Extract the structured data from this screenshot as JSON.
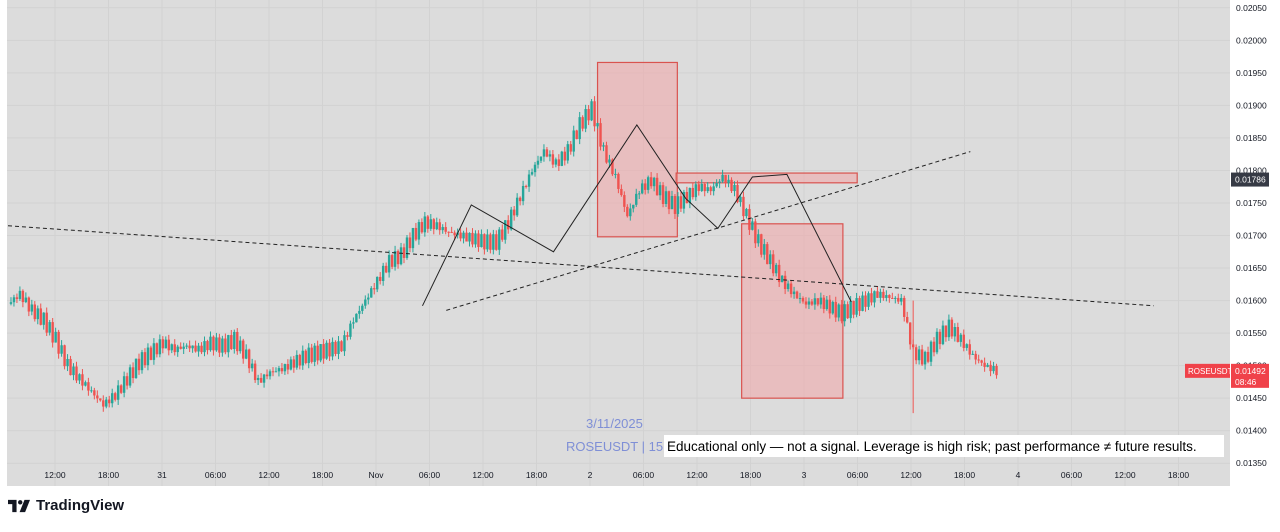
{
  "brand": {
    "name": "TradingView",
    "icon": "tradingview-logo-icon"
  },
  "watermark": {
    "date": "3/11/2025",
    "symbol_prefix": "ROSEUSDT | 15M"
  },
  "disclaimer": "Educational only — not a signal. Leverage is high risk; past performance ≠ future results.",
  "price_tags": {
    "marker": "0.01786",
    "symbol": "ROSEUSDT",
    "last": "0.01492",
    "countdown": "08:46"
  },
  "colors": {
    "up": "#26a69a",
    "down": "#ef5350",
    "zone_fill": "#f3a5a8",
    "zone_stroke": "#d9534f",
    "background": "#dcdcdc",
    "axis_bg": "#ffffff",
    "price_tag": "#f0424a",
    "marker_tag": "#363a45"
  },
  "chart_data": {
    "type": "candlestick",
    "y_ticks": [
      "0.02050",
      "0.02000",
      "0.01950",
      "0.01900",
      "0.01850",
      "0.01800",
      "0.01750",
      "0.01700",
      "0.01650",
      "0.01600",
      "0.01550",
      "0.01500",
      "0.01450",
      "0.01400",
      "0.01350"
    ],
    "x_ticks": [
      "12:00",
      "18:00",
      "31",
      "06:00",
      "12:00",
      "18:00",
      "Nov",
      "06:00",
      "12:00",
      "18:00",
      "2",
      "06:00",
      "12:00",
      "18:00",
      "3",
      "06:00",
      "12:00",
      "18:00",
      "4",
      "06:00",
      "12:00",
      "18:00"
    ],
    "ylim": [
      0.01315,
      0.02062
    ],
    "grid": true,
    "close_path": [
      [
        0,
        0.01595
      ],
      [
        1,
        0.0161
      ],
      [
        2,
        0.01585
      ],
      [
        3,
        0.0157
      ],
      [
        4,
        0.0154
      ],
      [
        5,
        0.015
      ],
      [
        6,
        0.0148
      ],
      [
        7,
        0.0146
      ],
      [
        8,
        0.0144
      ],
      [
        9,
        0.01455
      ],
      [
        10,
        0.0148
      ],
      [
        11,
        0.01505
      ],
      [
        12,
        0.0152
      ],
      [
        13,
        0.01535
      ],
      [
        14,
        0.01525
      ],
      [
        15,
        0.0153
      ],
      [
        16,
        0.01525
      ],
      [
        17,
        0.01535
      ],
      [
        18,
        0.0153
      ],
      [
        19,
        0.0154
      ],
      [
        20,
        0.01515
      ],
      [
        21,
        0.01475
      ],
      [
        22,
        0.0149
      ],
      [
        23,
        0.01495
      ],
      [
        24,
        0.01505
      ],
      [
        25,
        0.01515
      ],
      [
        26,
        0.0152
      ],
      [
        27,
        0.01525
      ],
      [
        28,
        0.0153
      ],
      [
        29,
        0.0157
      ],
      [
        30,
        0.016
      ],
      [
        31,
        0.0163
      ],
      [
        32,
        0.0166
      ],
      [
        33,
        0.0167
      ],
      [
        34,
        0.017
      ],
      [
        35,
        0.0172
      ],
      [
        36,
        0.01715
      ],
      [
        37,
        0.01705
      ],
      [
        38,
        0.017
      ],
      [
        39,
        0.01695
      ],
      [
        40,
        0.0169
      ],
      [
        41,
        0.0169
      ],
      [
        42,
        0.0172
      ],
      [
        43,
        0.0176
      ],
      [
        44,
        0.018
      ],
      [
        45,
        0.0183
      ],
      [
        46,
        0.0181
      ],
      [
        47,
        0.0183
      ],
      [
        48,
        0.0187
      ],
      [
        49,
        0.01895
      ],
      [
        50,
        0.0183
      ],
      [
        51,
        0.0179
      ],
      [
        52,
        0.0173
      ],
      [
        53,
        0.0177
      ],
      [
        54,
        0.01785
      ],
      [
        55,
        0.0176
      ],
      [
        56,
        0.01745
      ],
      [
        57,
        0.0176
      ],
      [
        58,
        0.01775
      ],
      [
        59,
        0.0177
      ],
      [
        60,
        0.0179
      ],
      [
        61,
        0.0177
      ],
      [
        62,
        0.0173
      ],
      [
        63,
        0.0169
      ],
      [
        64,
        0.0166
      ],
      [
        65,
        0.0163
      ],
      [
        66,
        0.0161
      ],
      [
        67,
        0.01595
      ],
      [
        68,
        0.016
      ],
      [
        69,
        0.0159
      ],
      [
        70,
        0.0158
      ],
      [
        71,
        0.0159
      ],
      [
        72,
        0.016
      ],
      [
        73,
        0.0161
      ],
      [
        74,
        0.01605
      ],
      [
        75,
        0.016
      ],
      [
        76,
        0.0152
      ],
      [
        77,
        0.0151
      ],
      [
        78,
        0.0154
      ],
      [
        79,
        0.0156
      ],
      [
        80,
        0.0154
      ],
      [
        81,
        0.01515
      ],
      [
        82,
        0.015
      ],
      [
        83,
        0.01492
      ]
    ],
    "annotations": {
      "zones": [
        {
          "name": "upper-supply-zone",
          "from_index": 49.5,
          "to_index": 56.2,
          "price_high": 0.01966,
          "price_low": 0.01698
        },
        {
          "name": "horizontal-resistance-zone",
          "from_index": 56.1,
          "to_index": 71.3,
          "price_high": 0.01796,
          "price_low": 0.01781
        },
        {
          "name": "lower-demand-zone",
          "from_index": 61.6,
          "to_index": 70.1,
          "price_high": 0.01718,
          "price_low": 0.0145
        }
      ],
      "dashed_lines": [
        {
          "name": "long-trendline",
          "from": [
            0,
            0.01715
          ],
          "to": [
            96.2,
            0.01592
          ]
        },
        {
          "name": "rising-trendline",
          "from": [
            36.8,
            0.01585
          ],
          "to": [
            80.8,
            0.01829
          ]
        }
      ],
      "pattern_path": [
        [
          34.8,
          0.01592
        ],
        [
          38.9,
          0.01747
        ],
        [
          45.8,
          0.01675
        ],
        [
          52.8,
          0.0187
        ],
        [
          56.9,
          0.01757
        ],
        [
          59.6,
          0.01711
        ],
        [
          62.5,
          0.0179
        ],
        [
          65.4,
          0.01794
        ],
        [
          70.8,
          0.01598
        ]
      ]
    }
  }
}
